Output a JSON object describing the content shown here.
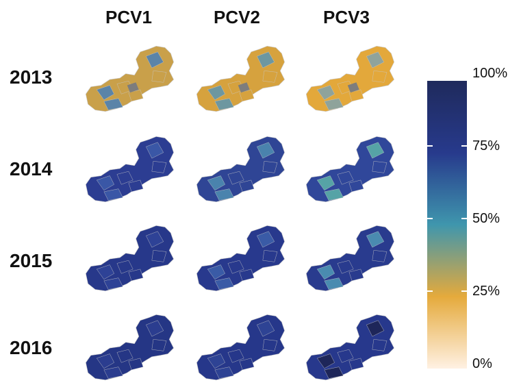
{
  "columns": [
    "PCV1",
    "PCV2",
    "PCV3"
  ],
  "rows": [
    {
      "year": "2013",
      "maps": [
        {
          "dose": "PCV1",
          "fill": "#c9a04a",
          "accent": "#5b84a8"
        },
        {
          "dose": "PCV2",
          "fill": "#d6a23e",
          "accent": "#6d97a0"
        },
        {
          "dose": "PCV3",
          "fill": "#e3a83b",
          "accent": "#8fa39b"
        }
      ]
    },
    {
      "year": "2014",
      "maps": [
        {
          "dose": "PCV1",
          "fill": "#2c3d92",
          "accent": "#3a57a6"
        },
        {
          "dose": "PCV2",
          "fill": "#2f4595",
          "accent": "#4a83ad"
        },
        {
          "dose": "PCV3",
          "fill": "#30479a",
          "accent": "#56a3a6"
        }
      ]
    },
    {
      "year": "2015",
      "maps": [
        {
          "dose": "PCV1",
          "fill": "#27388a",
          "accent": "#2e4296"
        },
        {
          "dose": "PCV2",
          "fill": "#28398d",
          "accent": "#3a5ba6"
        },
        {
          "dose": "PCV3",
          "fill": "#293b8e",
          "accent": "#4a8bb0"
        }
      ]
    },
    {
      "year": "2016",
      "maps": [
        {
          "dose": "PCV1",
          "fill": "#253685",
          "accent": "#2b3d8f"
        },
        {
          "dose": "PCV2",
          "fill": "#26378a",
          "accent": "#2e4394"
        },
        {
          "dose": "PCV3",
          "fill": "#27388c",
          "accent": "#1e2659"
        }
      ]
    }
  ],
  "legend": {
    "labels": [
      "100%",
      "75%",
      "50%",
      "25%",
      "0%"
    ],
    "colors": [
      "#1f2a5c",
      "#273a8c",
      "#3f96ad",
      "#e5aa3c",
      "#fff1e3"
    ]
  }
}
